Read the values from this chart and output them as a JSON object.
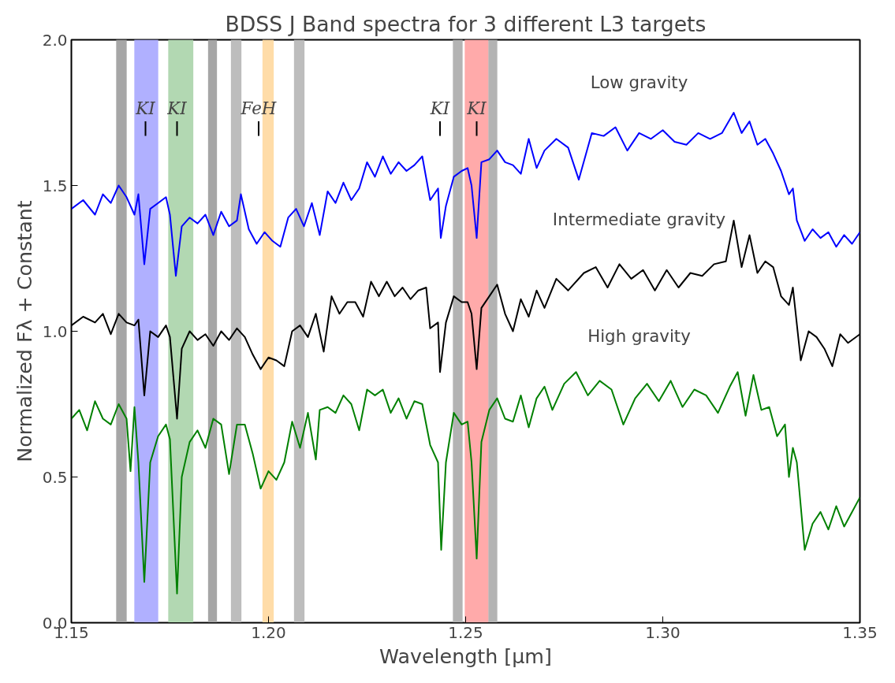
{
  "chart_data": {
    "type": "line",
    "title": "BDSS J Band spectra for 3 different L3 targets",
    "xlabel": "Wavelength [μm]",
    "ylabel": "Normalized Fλ + Constant",
    "xlim": [
      1.15,
      1.35
    ],
    "ylim": [
      0,
      2.0
    ],
    "xticks": [
      1.15,
      {
        "value": 1.2,
        "label": "1.20"
      },
      1.25,
      {
        "value": 1.3,
        "label": "1.30"
      },
      1.35
    ],
    "yticks": [
      {
        "value": 0,
        "label": "0.0"
      },
      0.5,
      {
        "value": 1,
        "label": "1.0"
      },
      1.5,
      {
        "value": 2,
        "label": "2.0"
      }
    ],
    "grid": false,
    "series": [
      {
        "name": "Low gravity",
        "color": "#0000ff",
        "x": [
          1.15,
          1.153,
          1.156,
          1.158,
          1.16,
          1.162,
          1.164,
          1.166,
          1.167,
          1.1685,
          1.17,
          1.172,
          1.174,
          1.175,
          1.1765,
          1.178,
          1.18,
          1.182,
          1.184,
          1.186,
          1.188,
          1.19,
          1.192,
          1.193,
          1.195,
          1.197,
          1.199,
          1.201,
          1.203,
          1.205,
          1.207,
          1.209,
          1.211,
          1.213,
          1.215,
          1.217,
          1.219,
          1.221,
          1.223,
          1.225,
          1.227,
          1.229,
          1.231,
          1.233,
          1.235,
          1.237,
          1.239,
          1.241,
          1.243,
          1.2437,
          1.245,
          1.247,
          1.249,
          1.2505,
          1.2515,
          1.2528,
          1.254,
          1.256,
          1.258,
          1.26,
          1.262,
          1.264,
          1.266,
          1.268,
          1.27,
          1.273,
          1.276,
          1.2787,
          1.282,
          1.285,
          1.288,
          1.291,
          1.294,
          1.297,
          1.3,
          1.303,
          1.306,
          1.309,
          1.312,
          1.315,
          1.318,
          1.32,
          1.322,
          1.324,
          1.326,
          1.328,
          1.33,
          1.332,
          1.333,
          1.334,
          1.336,
          1.338,
          1.34,
          1.342,
          1.344,
          1.346,
          1.348,
          1.35
        ],
        "values": [
          1.42,
          1.45,
          1.4,
          1.47,
          1.44,
          1.5,
          1.46,
          1.4,
          1.47,
          1.23,
          1.42,
          1.44,
          1.46,
          1.4,
          1.19,
          1.36,
          1.39,
          1.37,
          1.4,
          1.33,
          1.41,
          1.36,
          1.38,
          1.47,
          1.35,
          1.3,
          1.34,
          1.31,
          1.29,
          1.39,
          1.42,
          1.36,
          1.44,
          1.33,
          1.48,
          1.44,
          1.51,
          1.45,
          1.49,
          1.58,
          1.53,
          1.6,
          1.54,
          1.58,
          1.55,
          1.57,
          1.6,
          1.45,
          1.49,
          1.32,
          1.43,
          1.53,
          1.55,
          1.56,
          1.5,
          1.32,
          1.58,
          1.59,
          1.62,
          1.58,
          1.57,
          1.54,
          1.66,
          1.56,
          1.62,
          1.66,
          1.63,
          1.52,
          1.68,
          1.67,
          1.7,
          1.62,
          1.68,
          1.66,
          1.69,
          1.65,
          1.64,
          1.68,
          1.66,
          1.68,
          1.75,
          1.68,
          1.72,
          1.64,
          1.66,
          1.61,
          1.55,
          1.47,
          1.49,
          1.38,
          1.31,
          1.35,
          1.32,
          1.34,
          1.29,
          1.33,
          1.3,
          1.34
        ]
      },
      {
        "name": "Intermediate gravity",
        "color": "#000000",
        "x": [
          1.15,
          1.153,
          1.156,
          1.158,
          1.16,
          1.162,
          1.164,
          1.166,
          1.167,
          1.1685,
          1.17,
          1.172,
          1.174,
          1.175,
          1.1768,
          1.178,
          1.18,
          1.182,
          1.184,
          1.186,
          1.188,
          1.19,
          1.192,
          1.194,
          1.196,
          1.198,
          1.2,
          1.202,
          1.204,
          1.206,
          1.208,
          1.21,
          1.212,
          1.214,
          1.216,
          1.218,
          1.22,
          1.222,
          1.224,
          1.226,
          1.228,
          1.23,
          1.232,
          1.234,
          1.236,
          1.238,
          1.24,
          1.241,
          1.243,
          1.2435,
          1.245,
          1.247,
          1.249,
          1.2505,
          1.2515,
          1.2528,
          1.254,
          1.256,
          1.258,
          1.26,
          1.262,
          1.264,
          1.266,
          1.268,
          1.27,
          1.273,
          1.276,
          1.28,
          1.283,
          1.286,
          1.289,
          1.292,
          1.295,
          1.298,
          1.301,
          1.304,
          1.307,
          1.31,
          1.313,
          1.316,
          1.318,
          1.32,
          1.322,
          1.324,
          1.326,
          1.328,
          1.33,
          1.332,
          1.333,
          1.335,
          1.337,
          1.339,
          1.341,
          1.343,
          1.345,
          1.347,
          1.35
        ],
        "values": [
          1.02,
          1.05,
          1.03,
          1.06,
          0.99,
          1.06,
          1.03,
          1.02,
          1.04,
          0.78,
          1.0,
          0.98,
          1.02,
          0.98,
          0.7,
          0.94,
          1.0,
          0.97,
          0.99,
          0.95,
          1.0,
          0.97,
          1.01,
          0.98,
          0.92,
          0.87,
          0.91,
          0.9,
          0.88,
          1.0,
          1.02,
          0.98,
          1.06,
          0.93,
          1.12,
          1.06,
          1.1,
          1.1,
          1.05,
          1.17,
          1.12,
          1.17,
          1.12,
          1.15,
          1.11,
          1.14,
          1.15,
          1.01,
          1.03,
          0.86,
          1.03,
          1.12,
          1.1,
          1.1,
          1.06,
          0.87,
          1.08,
          1.12,
          1.16,
          1.06,
          1.0,
          1.11,
          1.05,
          1.14,
          1.08,
          1.18,
          1.14,
          1.2,
          1.22,
          1.15,
          1.23,
          1.18,
          1.21,
          1.14,
          1.21,
          1.15,
          1.2,
          1.19,
          1.23,
          1.24,
          1.38,
          1.22,
          1.33,
          1.2,
          1.24,
          1.22,
          1.12,
          1.09,
          1.15,
          0.9,
          1.0,
          0.98,
          0.94,
          0.88,
          0.99,
          0.96,
          0.99
        ]
      },
      {
        "name": "High gravity",
        "color": "#008000",
        "x": [
          1.15,
          1.152,
          1.154,
          1.156,
          1.158,
          1.16,
          1.162,
          1.164,
          1.165,
          1.166,
          1.167,
          1.1685,
          1.17,
          1.172,
          1.174,
          1.175,
          1.1768,
          1.178,
          1.18,
          1.182,
          1.184,
          1.186,
          1.188,
          1.19,
          1.192,
          1.194,
          1.196,
          1.198,
          1.2,
          1.202,
          1.204,
          1.206,
          1.208,
          1.21,
          1.212,
          1.213,
          1.215,
          1.217,
          1.219,
          1.221,
          1.223,
          1.225,
          1.227,
          1.229,
          1.231,
          1.233,
          1.235,
          1.237,
          1.239,
          1.241,
          1.243,
          1.2438,
          1.245,
          1.247,
          1.249,
          1.2505,
          1.2515,
          1.2528,
          1.254,
          1.256,
          1.258,
          1.26,
          1.262,
          1.264,
          1.266,
          1.268,
          1.27,
          1.272,
          1.275,
          1.278,
          1.281,
          1.284,
          1.287,
          1.29,
          1.293,
          1.296,
          1.299,
          1.302,
          1.305,
          1.308,
          1.311,
          1.314,
          1.317,
          1.319,
          1.321,
          1.323,
          1.325,
          1.327,
          1.329,
          1.331,
          1.332,
          1.333,
          1.334,
          1.336,
          1.338,
          1.34,
          1.342,
          1.344,
          1.346,
          1.348,
          1.35
        ],
        "values": [
          0.7,
          0.73,
          0.66,
          0.76,
          0.7,
          0.68,
          0.75,
          0.7,
          0.52,
          0.74,
          0.55,
          0.14,
          0.55,
          0.64,
          0.68,
          0.63,
          0.1,
          0.5,
          0.62,
          0.66,
          0.6,
          0.7,
          0.68,
          0.51,
          0.68,
          0.68,
          0.58,
          0.46,
          0.52,
          0.49,
          0.55,
          0.69,
          0.6,
          0.72,
          0.56,
          0.73,
          0.74,
          0.72,
          0.78,
          0.75,
          0.66,
          0.8,
          0.78,
          0.8,
          0.72,
          0.77,
          0.7,
          0.76,
          0.75,
          0.61,
          0.55,
          0.25,
          0.55,
          0.72,
          0.68,
          0.69,
          0.55,
          0.22,
          0.62,
          0.73,
          0.77,
          0.7,
          0.69,
          0.78,
          0.67,
          0.77,
          0.81,
          0.73,
          0.82,
          0.86,
          0.78,
          0.83,
          0.8,
          0.68,
          0.77,
          0.82,
          0.76,
          0.83,
          0.74,
          0.8,
          0.78,
          0.72,
          0.81,
          0.86,
          0.71,
          0.85,
          0.73,
          0.74,
          0.64,
          0.68,
          0.5,
          0.6,
          0.55,
          0.25,
          0.34,
          0.38,
          0.32,
          0.4,
          0.33,
          0.38,
          0.43
        ]
      }
    ],
    "bands": [
      {
        "axis": "x",
        "from": 1.1614,
        "to": 1.164,
        "color": "#a6a6a6"
      },
      {
        "axis": "x",
        "from": 1.166,
        "to": 1.172,
        "color": "#b0b0ff"
      },
      {
        "axis": "x",
        "from": 1.1746,
        "to": 1.1809,
        "color": "#b2d8b2"
      },
      {
        "axis": "x",
        "from": 1.1847,
        "to": 1.1869,
        "color": "#a6a6a6"
      },
      {
        "axis": "x",
        "from": 1.1905,
        "to": 1.1931,
        "color": "#bdbdbd"
      },
      {
        "axis": "x",
        "from": 1.1985,
        "to": 1.2013,
        "color": "#ffdca8"
      },
      {
        "axis": "x",
        "from": 1.2065,
        "to": 1.2091,
        "color": "#bdbdbd"
      },
      {
        "axis": "x",
        "from": 1.2468,
        "to": 1.2492,
        "color": "#b3b3b3"
      },
      {
        "axis": "x",
        "from": 1.2498,
        "to": 1.2558,
        "color": "#ffaaaa"
      },
      {
        "axis": "x",
        "from": 1.2558,
        "to": 1.258,
        "color": "#b3b3b3"
      }
    ],
    "annotations": [
      {
        "text": "KI",
        "x": 1.1688
      },
      {
        "text": "KI",
        "x": 1.1768
      },
      {
        "text": "FeH",
        "x": 1.1975
      },
      {
        "text": "KI",
        "x": 1.2435
      },
      {
        "text": "KI",
        "x": 1.2528
      }
    ]
  }
}
